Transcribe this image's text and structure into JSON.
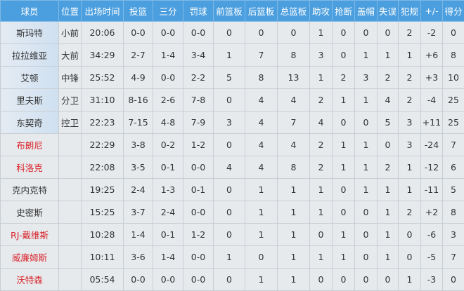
{
  "colors": {
    "header_bg": "#4c9fdf",
    "cell_bg": "#e7eaed",
    "starter_name_bg": "#cfe0f1",
    "highlight_name": "#d9262c"
  },
  "headers": [
    "球员",
    "位置",
    "出场时间",
    "投篮",
    "三分",
    "罚球",
    "前篮板",
    "后篮板",
    "总篮板",
    "助攻",
    "抢断",
    "盖帽",
    "失误",
    "犯规",
    "+/-",
    "得分"
  ],
  "rows": [
    {
      "starter": true,
      "red": false,
      "cells": [
        "斯玛特",
        "小前",
        "20:06",
        "0-0",
        "0-0",
        "0-0",
        "0",
        "0",
        "0",
        "1",
        "0",
        "0",
        "0",
        "2",
        "-2",
        "0"
      ]
    },
    {
      "starter": true,
      "red": false,
      "cells": [
        "拉拉维亚",
        "大前",
        "34:29",
        "2-7",
        "1-4",
        "3-4",
        "1",
        "7",
        "8",
        "3",
        "0",
        "1",
        "1",
        "1",
        "+6",
        "8"
      ]
    },
    {
      "starter": true,
      "red": false,
      "cells": [
        "艾顿",
        "中锋",
        "25:52",
        "4-9",
        "0-0",
        "2-2",
        "5",
        "8",
        "13",
        "1",
        "2",
        "3",
        "2",
        "2",
        "+3",
        "10"
      ]
    },
    {
      "starter": true,
      "red": false,
      "cells": [
        "里夫斯",
        "分卫",
        "31:10",
        "8-16",
        "2-6",
        "7-8",
        "0",
        "4",
        "4",
        "2",
        "1",
        "1",
        "4",
        "2",
        "-4",
        "25"
      ]
    },
    {
      "starter": true,
      "red": false,
      "cells": [
        "东契奇",
        "控卫",
        "22:23",
        "7-15",
        "4-8",
        "7-9",
        "3",
        "4",
        "7",
        "4",
        "0",
        "0",
        "5",
        "3",
        "+11",
        "25"
      ]
    },
    {
      "starter": false,
      "red": true,
      "cells": [
        "布朗尼",
        "",
        "22:29",
        "3-8",
        "0-2",
        "1-2",
        "0",
        "4",
        "4",
        "2",
        "1",
        "1",
        "0",
        "3",
        "-24",
        "7"
      ]
    },
    {
      "starter": false,
      "red": true,
      "cells": [
        "科洛克",
        "",
        "22:08",
        "3-5",
        "0-1",
        "0-0",
        "4",
        "4",
        "8",
        "2",
        "1",
        "1",
        "2",
        "1",
        "-12",
        "6"
      ]
    },
    {
      "starter": false,
      "red": false,
      "cells": [
        "克内克特",
        "",
        "19:25",
        "2-4",
        "1-3",
        "0-1",
        "0",
        "1",
        "1",
        "1",
        "0",
        "1",
        "1",
        "1",
        "-11",
        "5"
      ]
    },
    {
      "starter": false,
      "red": false,
      "cells": [
        "史密斯",
        "",
        "15:25",
        "3-7",
        "2-4",
        "0-0",
        "0",
        "1",
        "1",
        "1",
        "0",
        "0",
        "1",
        "2",
        "+2",
        "8"
      ]
    },
    {
      "starter": false,
      "red": true,
      "cells": [
        "RJ-戴维斯",
        "",
        "10:28",
        "1-4",
        "0-1",
        "1-2",
        "0",
        "1",
        "1",
        "0",
        "1",
        "0",
        "1",
        "0",
        "-6",
        "3"
      ]
    },
    {
      "starter": false,
      "red": true,
      "cells": [
        "威廉姆斯",
        "",
        "10:11",
        "3-6",
        "1-4",
        "0-0",
        "1",
        "0",
        "1",
        "1",
        "1",
        "0",
        "1",
        "0",
        "-5",
        "7"
      ]
    },
    {
      "starter": false,
      "red": true,
      "cells": [
        "沃特森",
        "",
        "05:54",
        "0-0",
        "0-0",
        "0-0",
        "0",
        "1",
        "1",
        "0",
        "0",
        "0",
        "0",
        "1",
        "-3",
        "0"
      ]
    }
  ]
}
